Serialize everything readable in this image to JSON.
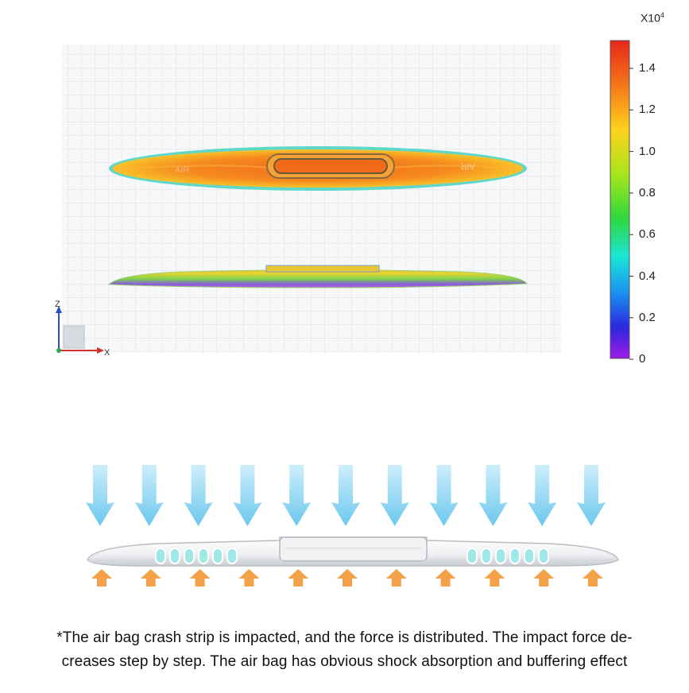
{
  "colorbar": {
    "exponent_base": "X10",
    "exponent_power": "4",
    "ticks": [
      "1.4",
      "1.2",
      "1.0",
      "0.8",
      "0.6",
      "0.4",
      "0.2",
      "0"
    ]
  },
  "axes": {
    "z_label": "Z",
    "x_label": "X"
  },
  "model": {
    "left_text": "AIR",
    "right_text": "AIR"
  },
  "caption": {
    "line1": "*The air bag crash strip is impacted, and the force is distributed. The impact force de-",
    "line2": "creases step by step. The air bag has obvious shock absorption and buffering effect"
  },
  "colors": {
    "arrow_down": "#8fd6f0",
    "arrow_up": "#f4a24a",
    "cell_cyan": "#9fe8e8"
  },
  "icons": [
    "down-arrow-icon",
    "up-arrow-icon",
    "axis-triad-icon"
  ]
}
